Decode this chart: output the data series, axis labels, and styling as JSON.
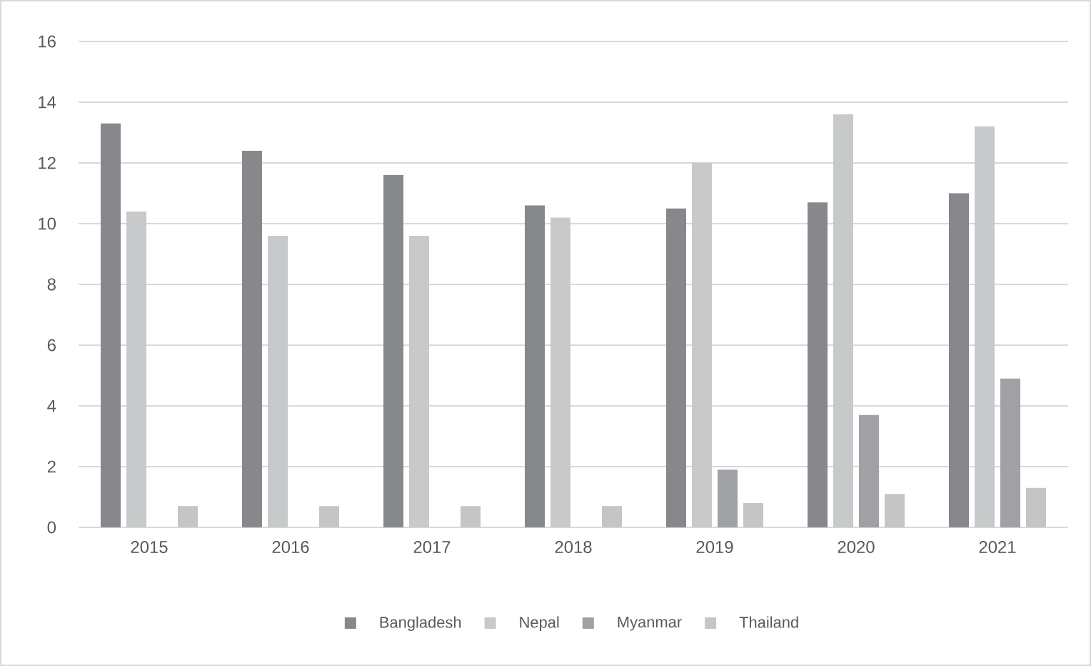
{
  "chart_data": {
    "type": "bar",
    "categories": [
      "2015",
      "2016",
      "2017",
      "2018",
      "2019",
      "2020",
      "2021"
    ],
    "series": [
      {
        "name": "Bangladesh",
        "color": "#87888c",
        "values": [
          13.3,
          12.4,
          11.6,
          10.6,
          10.5,
          10.7,
          11.0
        ]
      },
      {
        "name": "Nepal",
        "color": "#c8c9cb",
        "values": [
          10.4,
          9.6,
          9.6,
          10.2,
          12.0,
          13.6,
          13.2
        ]
      },
      {
        "name": "Myanmar",
        "color": "#a0a1a5",
        "values": [
          null,
          null,
          null,
          null,
          1.9,
          3.7,
          4.9
        ]
      },
      {
        "name": "Thailand",
        "color": "#c4c5c7",
        "values": [
          0.7,
          0.7,
          0.7,
          0.7,
          0.8,
          1.1,
          1.3
        ]
      }
    ],
    "ylim": [
      0,
      16
    ],
    "yticks": [
      0,
      2,
      4,
      6,
      8,
      10,
      12,
      14,
      16
    ],
    "grid": "y",
    "legend": "bottom"
  }
}
